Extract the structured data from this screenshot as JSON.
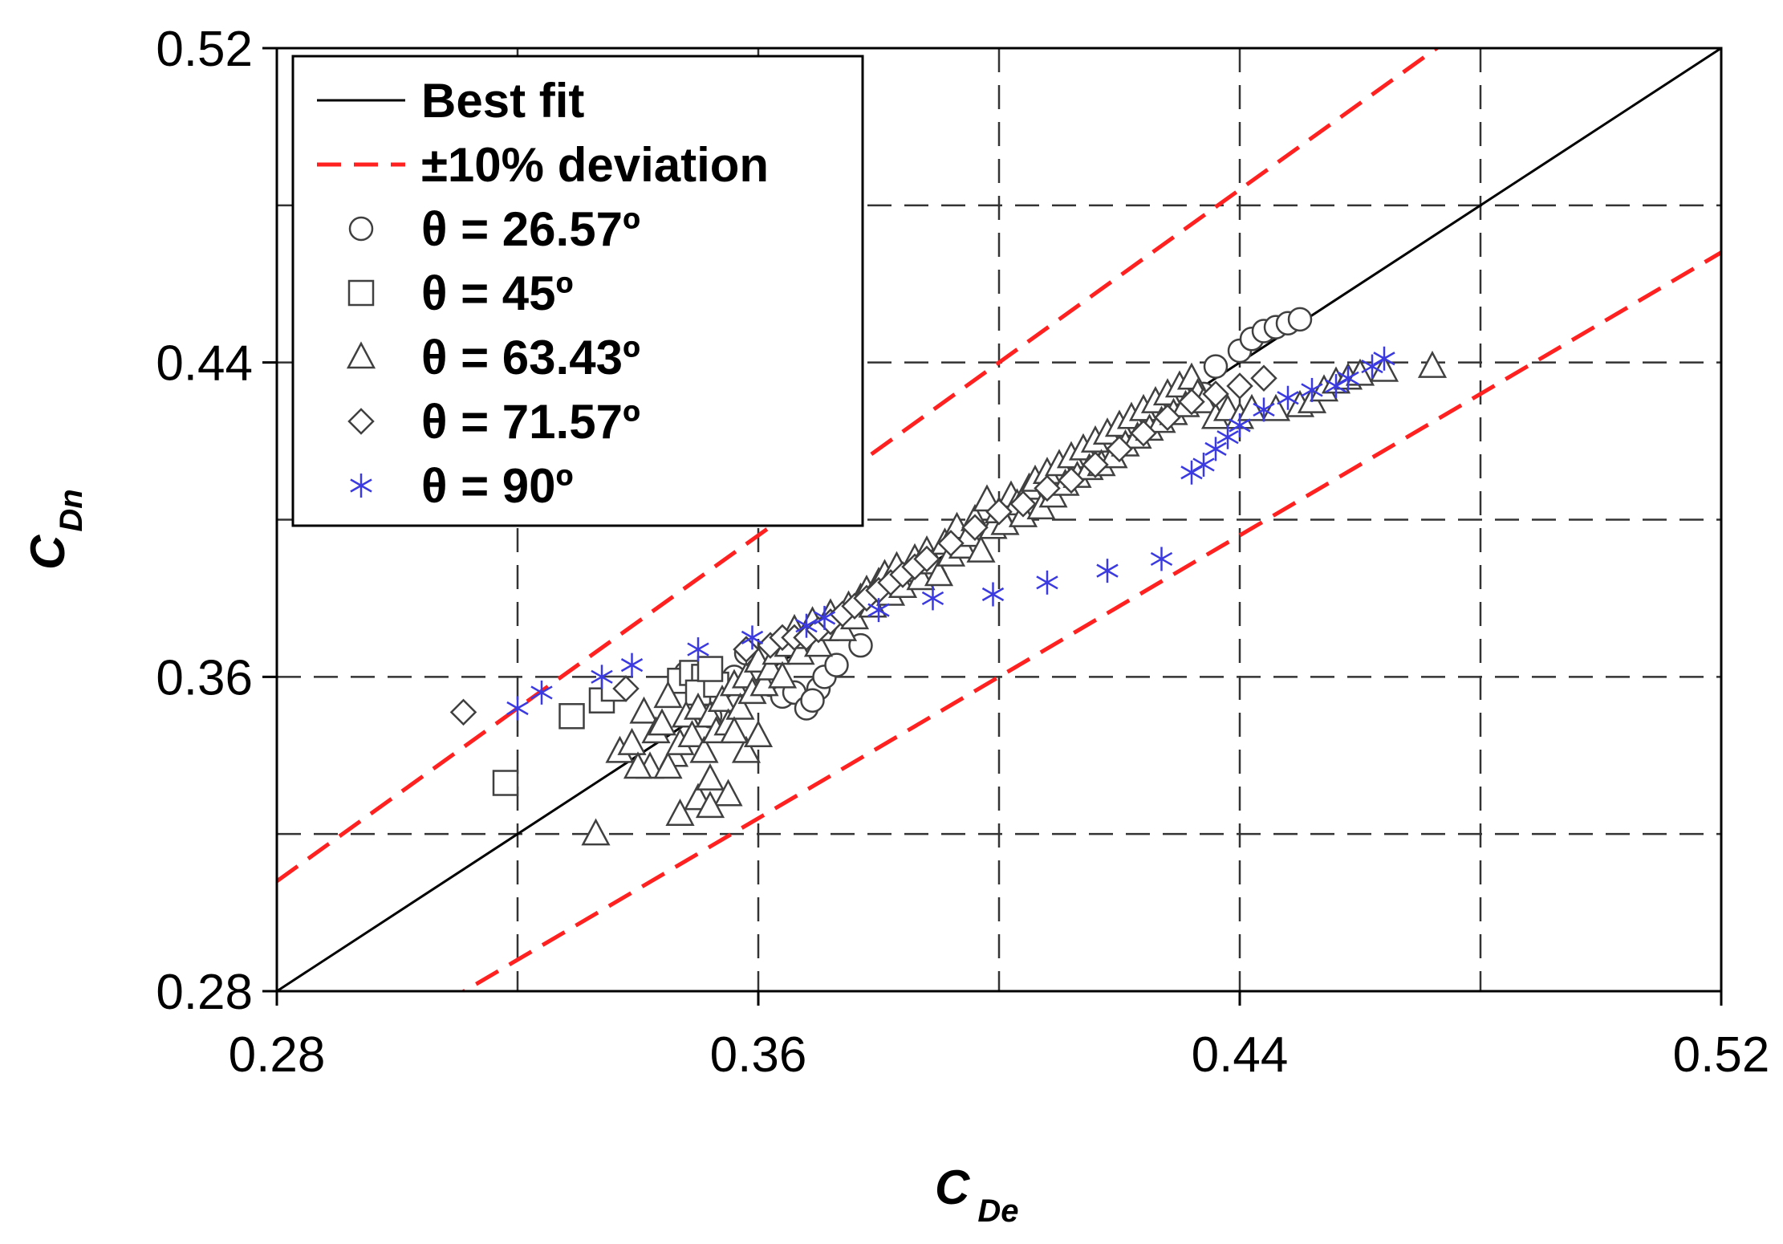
{
  "chart_data": {
    "type": "scatter",
    "title": "",
    "xlabel": {
      "main": "C",
      "sub": "De"
    },
    "ylabel": {
      "main": "C",
      "sub": "Dn"
    },
    "xlim": [
      0.28,
      0.52
    ],
    "ylim": [
      0.28,
      0.52
    ],
    "xticks": [
      "0.28",
      "0.36",
      "0.44",
      "0.52"
    ],
    "yticks": [
      "0.28",
      "0.36",
      "0.44",
      "0.52"
    ],
    "xtick_values": [
      0.28,
      0.36,
      0.44,
      0.52
    ],
    "ytick_values": [
      0.28,
      0.36,
      0.44,
      0.52
    ],
    "grid_values": [
      0.32,
      0.36,
      0.4,
      0.44,
      0.48
    ],
    "grid": true,
    "legend_position": "top-left",
    "colors": {
      "best_fit": "#000000",
      "deviation": "#ff2020",
      "markers": "#404040",
      "star": "#3a3ae0",
      "grid": "#333333"
    },
    "lines": [
      {
        "name": "Best fit",
        "style": "solid",
        "slope": 1.0
      },
      {
        "name": "±10% deviation",
        "style": "dashed",
        "slopes": [
          1.1,
          0.9
        ]
      }
    ],
    "series": [
      {
        "name": "θ = 26.57º",
        "marker": "circle",
        "points": [
          [
            0.348,
            0.361
          ],
          [
            0.351,
            0.358
          ],
          [
            0.353,
            0.356
          ],
          [
            0.356,
            0.36
          ],
          [
            0.358,
            0.366
          ],
          [
            0.36,
            0.362
          ],
          [
            0.362,
            0.358
          ],
          [
            0.364,
            0.355
          ],
          [
            0.366,
            0.356
          ],
          [
            0.368,
            0.352
          ],
          [
            0.37,
            0.357
          ],
          [
            0.371,
            0.36
          ],
          [
            0.369,
            0.354
          ],
          [
            0.373,
            0.363
          ],
          [
            0.377,
            0.368
          ],
          [
            0.44,
            0.443
          ],
          [
            0.442,
            0.446
          ],
          [
            0.444,
            0.448
          ],
          [
            0.446,
            0.449
          ],
          [
            0.448,
            0.45
          ],
          [
            0.45,
            0.451
          ],
          [
            0.436,
            0.439
          ],
          [
            0.434,
            0.432
          ],
          [
            0.432,
            0.433
          ],
          [
            0.352,
            0.35
          ]
        ]
      },
      {
        "name": "θ = 45º",
        "marker": "square",
        "points": [
          [
            0.318,
            0.333
          ],
          [
            0.329,
            0.35
          ],
          [
            0.334,
            0.354
          ],
          [
            0.336,
            0.357
          ],
          [
            0.347,
            0.359
          ],
          [
            0.349,
            0.361
          ],
          [
            0.351,
            0.36
          ],
          [
            0.35,
            0.356
          ],
          [
            0.353,
            0.358
          ],
          [
            0.352,
            0.362
          ]
        ]
      },
      {
        "name": "θ = 63.43º",
        "marker": "triangle",
        "points": [
          [
            0.333,
            0.32
          ],
          [
            0.337,
            0.341
          ],
          [
            0.339,
            0.343
          ],
          [
            0.341,
            0.351
          ],
          [
            0.342,
            0.337
          ],
          [
            0.343,
            0.346
          ],
          [
            0.344,
            0.348
          ],
          [
            0.345,
            0.355
          ],
          [
            0.346,
            0.34
          ],
          [
            0.347,
            0.343
          ],
          [
            0.348,
            0.35
          ],
          [
            0.349,
            0.345
          ],
          [
            0.35,
            0.352
          ],
          [
            0.351,
            0.341
          ],
          [
            0.352,
            0.35
          ],
          [
            0.353,
            0.346
          ],
          [
            0.354,
            0.354
          ],
          [
            0.355,
            0.348
          ],
          [
            0.356,
            0.358
          ],
          [
            0.357,
            0.352
          ],
          [
            0.358,
            0.36
          ],
          [
            0.359,
            0.356
          ],
          [
            0.36,
            0.364
          ],
          [
            0.361,
            0.358
          ],
          [
            0.362,
            0.362
          ],
          [
            0.363,
            0.366
          ],
          [
            0.364,
            0.36
          ],
          [
            0.365,
            0.368
          ],
          [
            0.366,
            0.372
          ],
          [
            0.367,
            0.366
          ],
          [
            0.368,
            0.37
          ],
          [
            0.369,
            0.374
          ],
          [
            0.37,
            0.368
          ],
          [
            0.371,
            0.372
          ],
          [
            0.372,
            0.376
          ],
          [
            0.373,
            0.374
          ],
          [
            0.374,
            0.372
          ],
          [
            0.375,
            0.378
          ],
          [
            0.376,
            0.375
          ],
          [
            0.377,
            0.38
          ],
          [
            0.378,
            0.382
          ],
          [
            0.379,
            0.378
          ],
          [
            0.38,
            0.384
          ],
          [
            0.381,
            0.386
          ],
          [
            0.382,
            0.381
          ],
          [
            0.383,
            0.388
          ],
          [
            0.384,
            0.383
          ],
          [
            0.385,
            0.387
          ],
          [
            0.386,
            0.39
          ],
          [
            0.387,
            0.385
          ],
          [
            0.388,
            0.392
          ],
          [
            0.389,
            0.389
          ],
          [
            0.39,
            0.386
          ],
          [
            0.391,
            0.394
          ],
          [
            0.392,
            0.391
          ],
          [
            0.393,
            0.398
          ],
          [
            0.394,
            0.393
          ],
          [
            0.395,
            0.396
          ],
          [
            0.396,
            0.4
          ],
          [
            0.397,
            0.392
          ],
          [
            0.398,
            0.405
          ],
          [
            0.399,
            0.398
          ],
          [
            0.4,
            0.402
          ],
          [
            0.401,
            0.399
          ],
          [
            0.402,
            0.406
          ],
          [
            0.403,
            0.404
          ],
          [
            0.404,
            0.401
          ],
          [
            0.405,
            0.408
          ],
          [
            0.406,
            0.41
          ],
          [
            0.407,
            0.403
          ],
          [
            0.408,
            0.412
          ],
          [
            0.409,
            0.406
          ],
          [
            0.41,
            0.414
          ],
          [
            0.411,
            0.409
          ],
          [
            0.412,
            0.416
          ],
          [
            0.413,
            0.411
          ],
          [
            0.414,
            0.418
          ],
          [
            0.415,
            0.413
          ],
          [
            0.416,
            0.42
          ],
          [
            0.417,
            0.414
          ],
          [
            0.418,
            0.422
          ],
          [
            0.419,
            0.416
          ],
          [
            0.42,
            0.424
          ],
          [
            0.421,
            0.419
          ],
          [
            0.422,
            0.426
          ],
          [
            0.423,
            0.421
          ],
          [
            0.424,
            0.428
          ],
          [
            0.425,
            0.423
          ],
          [
            0.426,
            0.43
          ],
          [
            0.427,
            0.425
          ],
          [
            0.428,
            0.432
          ],
          [
            0.429,
            0.427
          ],
          [
            0.43,
            0.434
          ],
          [
            0.431,
            0.429
          ],
          [
            0.432,
            0.436
          ],
          [
            0.433,
            0.432
          ],
          [
            0.434,
            0.43
          ],
          [
            0.436,
            0.426
          ],
          [
            0.438,
            0.428
          ],
          [
            0.44,
            0.426
          ],
          [
            0.442,
            0.428
          ],
          [
            0.446,
            0.428
          ],
          [
            0.45,
            0.429
          ],
          [
            0.452,
            0.43
          ],
          [
            0.454,
            0.433
          ],
          [
            0.456,
            0.435
          ],
          [
            0.458,
            0.436
          ],
          [
            0.46,
            0.437
          ],
          [
            0.464,
            0.438
          ],
          [
            0.472,
            0.439
          ],
          [
            0.347,
            0.325
          ],
          [
            0.35,
            0.329
          ],
          [
            0.352,
            0.334
          ],
          [
            0.355,
            0.33
          ],
          [
            0.358,
            0.341
          ],
          [
            0.36,
            0.345
          ],
          [
            0.352,
            0.327
          ],
          [
            0.356,
            0.346
          ],
          [
            0.345,
            0.337
          ],
          [
            0.34,
            0.337
          ]
        ]
      },
      {
        "name": "θ = 71.57º",
        "marker": "diamond",
        "points": [
          [
            0.311,
            0.351
          ],
          [
            0.338,
            0.357
          ],
          [
            0.358,
            0.367
          ],
          [
            0.362,
            0.368
          ],
          [
            0.364,
            0.37
          ],
          [
            0.366,
            0.37
          ],
          [
            0.368,
            0.37
          ],
          [
            0.37,
            0.372
          ],
          [
            0.372,
            0.374
          ],
          [
            0.374,
            0.376
          ],
          [
            0.376,
            0.378
          ],
          [
            0.378,
            0.38
          ],
          [
            0.38,
            0.382
          ],
          [
            0.382,
            0.384
          ],
          [
            0.384,
            0.386
          ],
          [
            0.386,
            0.388
          ],
          [
            0.388,
            0.39
          ],
          [
            0.392,
            0.394
          ],
          [
            0.396,
            0.398
          ],
          [
            0.4,
            0.402
          ],
          [
            0.404,
            0.404
          ],
          [
            0.408,
            0.408
          ],
          [
            0.412,
            0.41
          ],
          [
            0.416,
            0.414
          ],
          [
            0.42,
            0.418
          ],
          [
            0.424,
            0.422
          ],
          [
            0.428,
            0.426
          ],
          [
            0.432,
            0.43
          ],
          [
            0.436,
            0.432
          ],
          [
            0.44,
            0.434
          ],
          [
            0.444,
            0.436
          ]
        ]
      },
      {
        "name": "θ = 90º",
        "marker": "star",
        "points": [
          [
            0.32,
            0.352
          ],
          [
            0.324,
            0.356
          ],
          [
            0.334,
            0.36
          ],
          [
            0.339,
            0.363
          ],
          [
            0.35,
            0.367
          ],
          [
            0.359,
            0.37
          ],
          [
            0.368,
            0.373
          ],
          [
            0.371,
            0.375
          ],
          [
            0.38,
            0.377
          ],
          [
            0.389,
            0.38
          ],
          [
            0.399,
            0.381
          ],
          [
            0.408,
            0.384
          ],
          [
            0.418,
            0.387
          ],
          [
            0.427,
            0.39
          ],
          [
            0.432,
            0.412
          ],
          [
            0.434,
            0.414
          ],
          [
            0.436,
            0.418
          ],
          [
            0.438,
            0.421
          ],
          [
            0.44,
            0.424
          ],
          [
            0.444,
            0.428
          ],
          [
            0.448,
            0.431
          ],
          [
            0.452,
            0.433
          ],
          [
            0.456,
            0.434
          ],
          [
            0.458,
            0.436
          ],
          [
            0.462,
            0.439
          ],
          [
            0.464,
            0.441
          ]
        ]
      }
    ]
  }
}
